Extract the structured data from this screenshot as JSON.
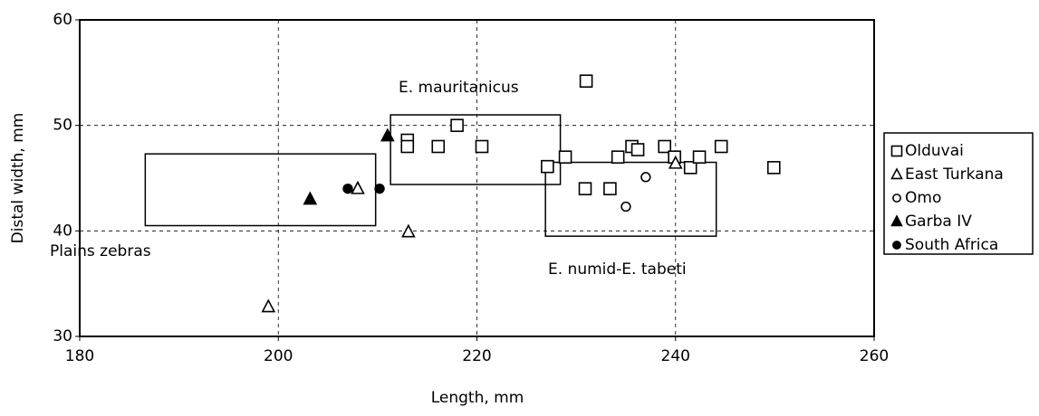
{
  "chart_data": {
    "type": "scatter",
    "xlabel": "Length, mm",
    "ylabel": "Distal width, mm",
    "xlim": [
      180,
      260
    ],
    "xticks": [
      180,
      200,
      220,
      240,
      260
    ],
    "ylim": [
      30,
      60
    ],
    "yticks": [
      30,
      40,
      50,
      60
    ],
    "grid": true,
    "legend": "right",
    "series": [
      {
        "name": "Olduvai",
        "marker": "square",
        "filled": false,
        "color": "#000000",
        "x": [
          231,
          218,
          213,
          213,
          216.1,
          220.5,
          227.1,
          228.9,
          230.9,
          233.4,
          234.2,
          235.6,
          236.2,
          238.9,
          239.9,
          241.5,
          242.4,
          244.6,
          249.9
        ],
        "values": [
          54.2,
          50,
          48.6,
          48,
          48,
          48,
          46.1,
          47,
          44,
          44,
          47,
          48,
          47.7,
          48,
          47,
          46,
          47,
          48,
          46
        ]
      },
      {
        "name": "East Turkana",
        "marker": "triangle",
        "filled": false,
        "color": "#000000",
        "x": [
          199,
          208,
          213.1,
          240
        ],
        "values": [
          32.8,
          44,
          39.9,
          46.4
        ]
      },
      {
        "name": "Omo",
        "marker": "circle",
        "filled": false,
        "color": "#000000",
        "x": [
          237,
          235
        ],
        "values": [
          45.1,
          42.3
        ]
      },
      {
        "name": "Garba IV",
        "marker": "triangle",
        "filled": true,
        "color": "#000000",
        "x": [
          203.2,
          211
        ],
        "values": [
          43,
          49
        ]
      },
      {
        "name": "South Africa",
        "marker": "circle",
        "filled": true,
        "color": "#000000",
        "x": [
          207,
          210.2
        ],
        "values": [
          44,
          44
        ]
      }
    ],
    "regions": [
      {
        "label": "Plains zebras",
        "x": [
          186.6,
          209.8
        ],
        "y": [
          40.5,
          47.3
        ]
      },
      {
        "label": "E. mauritanicus",
        "x": [
          211.3,
          228.4
        ],
        "y": [
          44.4,
          51
        ]
      },
      {
        "label": "E. numid-E. tabeti",
        "x": [
          226.9,
          244.1
        ],
        "y": [
          39.5,
          46.5
        ]
      }
    ]
  }
}
